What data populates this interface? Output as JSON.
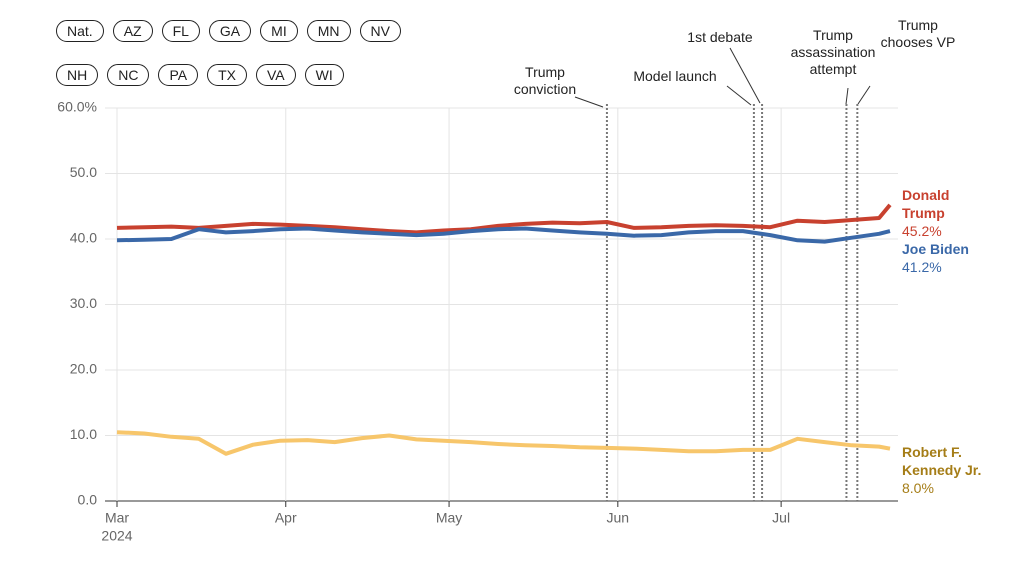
{
  "filters": [
    [
      "Nat.",
      "AZ",
      "FL",
      "GA",
      "MI",
      "MN",
      "NV"
    ],
    [
      "NH",
      "NC",
      "PA",
      "TX",
      "VA",
      "WI"
    ]
  ],
  "chart_data": {
    "type": "line",
    "x": [
      0,
      5,
      10,
      15,
      20,
      25,
      30,
      35,
      40,
      45,
      50,
      55,
      60,
      65,
      70,
      75,
      80,
      85,
      90,
      95,
      100,
      105,
      110,
      115,
      120,
      125,
      130,
      135,
      140,
      142
    ],
    "xlim": [
      0,
      142
    ],
    "xticks": [
      {
        "value": 0,
        "label": "Mar"
      },
      {
        "value": 31,
        "label": "Apr"
      },
      {
        "value": 61,
        "label": "May"
      },
      {
        "value": 92,
        "label": "Jun"
      },
      {
        "value": 122,
        "label": "Jul"
      }
    ],
    "x_year_label": "2024",
    "ylim": [
      0,
      60
    ],
    "yticks": [
      {
        "value": 0,
        "label": "0.0"
      },
      {
        "value": 10,
        "label": "10.0"
      },
      {
        "value": 20,
        "label": "20.0"
      },
      {
        "value": 30,
        "label": "30.0"
      },
      {
        "value": 40,
        "label": "40.0"
      },
      {
        "value": 50,
        "label": "50.0"
      },
      {
        "value": 60,
        "label": "60.0%"
      }
    ],
    "grid": true,
    "series": [
      {
        "name": "Donald Trump",
        "color": "#c8412f",
        "values": [
          41.7,
          41.8,
          41.9,
          41.7,
          42.0,
          42.3,
          42.2,
          42.0,
          41.8,
          41.5,
          41.2,
          41.0,
          41.3,
          41.5,
          42.0,
          42.3,
          42.5,
          42.4,
          42.6,
          41.7,
          41.8,
          42.0,
          42.1,
          42.0,
          41.8,
          42.8,
          42.6,
          42.9,
          43.2,
          45.2
        ],
        "value_labels": [
          null,
          null,
          null,
          null,
          null,
          null,
          null,
          null,
          null,
          null,
          null,
          null,
          null,
          null,
          null,
          null,
          null,
          null,
          null,
          null,
          null,
          null,
          null,
          null,
          null,
          null,
          null,
          null,
          null,
          "45.2%"
        ]
      },
      {
        "name": "Joe Biden",
        "color": "#3a68a8",
        "values": [
          39.8,
          39.9,
          40.0,
          41.5,
          41.0,
          41.2,
          41.5,
          41.6,
          41.3,
          41.0,
          40.8,
          40.6,
          40.8,
          41.2,
          41.5,
          41.6,
          41.3,
          41.0,
          40.8,
          40.5,
          40.6,
          41.0,
          41.2,
          41.2,
          40.6,
          39.8,
          39.6,
          40.2,
          40.8,
          41.2
        ],
        "value_labels": [
          null,
          null,
          null,
          null,
          null,
          null,
          null,
          null,
          null,
          null,
          null,
          null,
          null,
          null,
          null,
          null,
          null,
          null,
          null,
          null,
          null,
          null,
          null,
          null,
          null,
          null,
          null,
          null,
          null,
          "41.2%"
        ]
      },
      {
        "name": "Robert F. Kennedy Jr.",
        "color": "#f7c66b",
        "label_color": "#a57d17",
        "values": [
          10.5,
          10.3,
          9.8,
          9.5,
          7.2,
          8.6,
          9.2,
          9.3,
          9.0,
          9.6,
          10.0,
          9.4,
          9.2,
          9.0,
          8.7,
          8.5,
          8.4,
          8.2,
          8.1,
          8.0,
          7.8,
          7.6,
          7.6,
          7.8,
          7.8,
          9.5,
          9.0,
          8.5,
          8.3,
          8.0
        ],
        "value_labels": [
          null,
          null,
          null,
          null,
          null,
          null,
          null,
          null,
          null,
          null,
          null,
          null,
          null,
          null,
          null,
          null,
          null,
          null,
          null,
          null,
          null,
          null,
          null,
          null,
          null,
          null,
          null,
          null,
          null,
          "8.0%"
        ]
      }
    ],
    "events": [
      {
        "x": 90,
        "label": "Trump conviction"
      },
      {
        "x": 117,
        "label": "Model launch"
      },
      {
        "x": 118.5,
        "label": "1st debate"
      },
      {
        "x": 134,
        "label": "Trump assassination attempt"
      },
      {
        "x": 136,
        "label": "Trump chooses VP"
      }
    ]
  }
}
